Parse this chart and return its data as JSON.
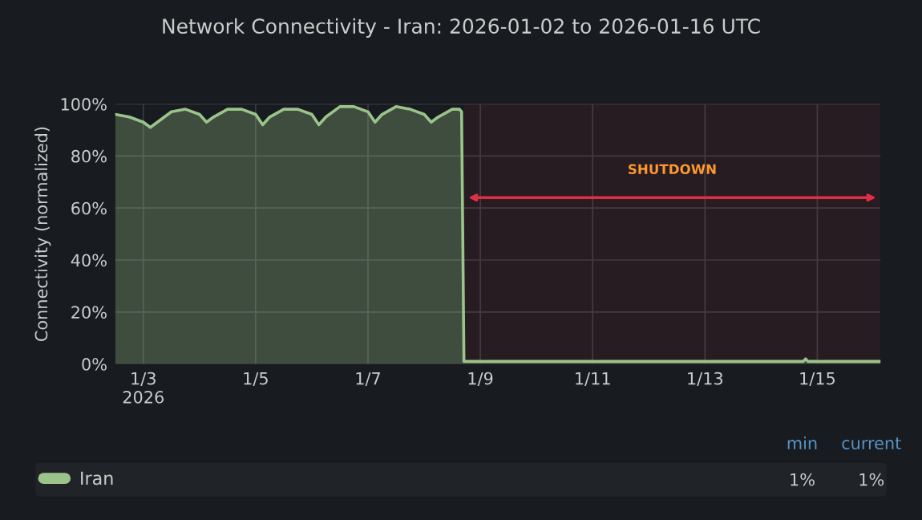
{
  "chart_data": {
    "type": "area",
    "title": "Network Connectivity - Iran: 2026-01-02 to 2026-01-16 UTC",
    "ylabel": "Connectivity (normalized)",
    "x": [
      "2026-01-02T12:00",
      "2026-01-02T18:00",
      "2026-01-03T00:00",
      "2026-01-03T03:00",
      "2026-01-03T06:00",
      "2026-01-03T12:00",
      "2026-01-03T18:00",
      "2026-01-04T00:00",
      "2026-01-04T03:00",
      "2026-01-04T06:00",
      "2026-01-04T12:00",
      "2026-01-04T18:00",
      "2026-01-05T00:00",
      "2026-01-05T03:00",
      "2026-01-05T06:00",
      "2026-01-05T12:00",
      "2026-01-05T18:00",
      "2026-01-06T00:00",
      "2026-01-06T03:00",
      "2026-01-06T06:00",
      "2026-01-06T12:00",
      "2026-01-06T18:00",
      "2026-01-07T00:00",
      "2026-01-07T03:00",
      "2026-01-07T06:00",
      "2026-01-07T12:00",
      "2026-01-07T18:00",
      "2026-01-08T00:00",
      "2026-01-08T03:00",
      "2026-01-08T06:00",
      "2026-01-08T12:00",
      "2026-01-08T15:00",
      "2026-01-08T16:00",
      "2026-01-08T17:00",
      "2026-01-09T00:00",
      "2026-01-11T00:00",
      "2026-01-13T00:00",
      "2026-01-14T18:00",
      "2026-01-14T19:00",
      "2026-01-14T20:00",
      "2026-01-16T03:00"
    ],
    "series": [
      {
        "name": "Iran",
        "color": "#9ac48a",
        "values": [
          96,
          95,
          93,
          91,
          93,
          97,
          98,
          96,
          93,
          95,
          98,
          98,
          96,
          92,
          95,
          98,
          98,
          96,
          92,
          95,
          99,
          99,
          97,
          93,
          96,
          99,
          98,
          96,
          93,
          95,
          98,
          98,
          97,
          1,
          1,
          1,
          1,
          1,
          2,
          1,
          1
        ]
      }
    ],
    "xlim": [
      "2026-01-02T12:00",
      "2026-01-16T03:00"
    ],
    "xticks": [
      {
        "value": "2026-01-03",
        "label": "1/3\n2026"
      },
      {
        "value": "2026-01-05",
        "label": "1/5"
      },
      {
        "value": "2026-01-07",
        "label": "1/7"
      },
      {
        "value": "2026-01-09",
        "label": "1/9"
      },
      {
        "value": "2026-01-11",
        "label": "1/11"
      },
      {
        "value": "2026-01-13",
        "label": "1/13"
      },
      {
        "value": "2026-01-15",
        "label": "1/15"
      }
    ],
    "ylim": [
      0,
      100
    ],
    "yticks": [
      {
        "value": 0,
        "label": "0%"
      },
      {
        "value": 20,
        "label": "20%"
      },
      {
        "value": 40,
        "label": "40%"
      },
      {
        "value": 60,
        "label": "60%"
      },
      {
        "value": 80,
        "label": "80%"
      },
      {
        "value": 100,
        "label": "100%"
      }
    ],
    "bands": [
      {
        "axis": "x",
        "from": "2026-01-08T17:00",
        "to": "2026-01-16T03:00",
        "label": "SHUTDOWN",
        "color": "#e02f44"
      }
    ],
    "annotations": [
      "min",
      "current",
      "1%",
      "1%"
    ],
    "grid": true,
    "legend": "bottom"
  }
}
